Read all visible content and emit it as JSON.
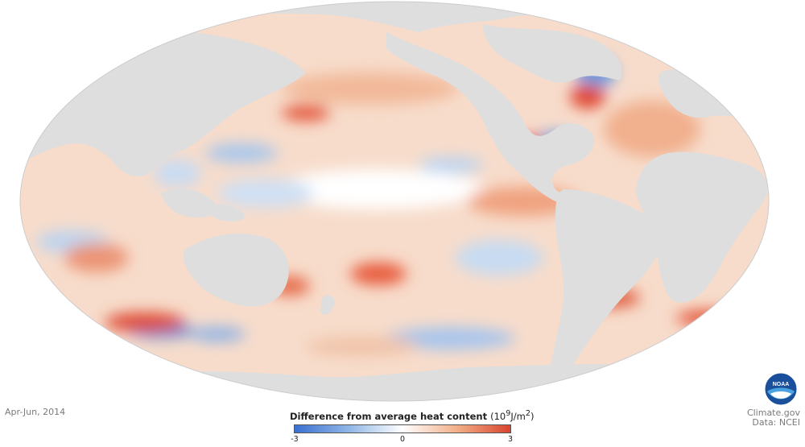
{
  "map": {
    "projection": "equal-area world map (ocean heat content anomaly)",
    "land_color": "#d9d9d9",
    "ocean_neutral_color": "#ffffff",
    "warm_color": "#d9442e",
    "cool_color": "#3b6fd1"
  },
  "period_label": "Apr-Jun, 2014",
  "legend": {
    "title": "Difference from average heat content",
    "unit_prefix": "(10",
    "unit_sup1": "9",
    "unit_mid": "J/m",
    "unit_sup2": "2",
    "unit_suffix": ")",
    "min_label": "-3",
    "mid_label": "0",
    "max_label": "3",
    "range": [
      -3,
      3
    ]
  },
  "credits": {
    "site": "Climate.gov",
    "data": "Data: NCEI",
    "logo_text": "NOAA",
    "logo_icon": "noaa-logo-icon"
  }
}
